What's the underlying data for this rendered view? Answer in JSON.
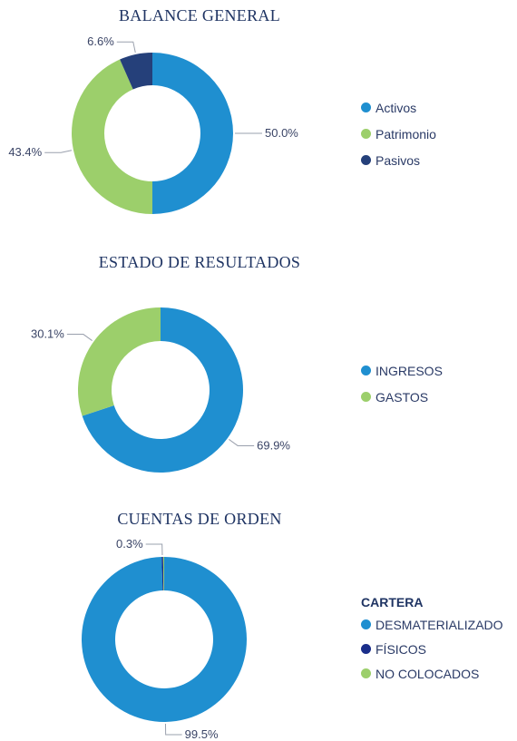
{
  "chart_data": [
    {
      "type": "pie",
      "title": "BALANCE GENERAL",
      "categories": [
        "Activos",
        "Patrimonio",
        "Pasivos"
      ],
      "values": [
        50.0,
        43.4,
        6.6
      ],
      "labels": [
        "50.0%",
        "43.4%",
        "6.6%"
      ],
      "colors": [
        "#1f8fd0",
        "#9ccf6b",
        "#25407a"
      ],
      "legend_position": "right",
      "donut": true
    },
    {
      "type": "pie",
      "title": "ESTADO DE RESULTADOS",
      "categories": [
        "INGRESOS",
        "GASTOS"
      ],
      "values": [
        69.9,
        30.1
      ],
      "labels": [
        "69.9%",
        "30.1%"
      ],
      "colors": [
        "#1f8fd0",
        "#9ccf6b"
      ],
      "legend_position": "right",
      "donut": true
    },
    {
      "type": "pie",
      "title": "CUENTAS DE ORDEN",
      "legend_title": "CARTERA",
      "categories": [
        "DESMATERIALIZADO",
        "FÍSICOS",
        "NO COLOCADOS"
      ],
      "values": [
        99.5,
        0.3,
        0.2
      ],
      "labels": [
        "99.5%",
        "0.3%",
        ""
      ],
      "colors": [
        "#1f8fd0",
        "#1a2e8a",
        "#9ccf6b"
      ],
      "legend_position": "right",
      "donut": true
    }
  ]
}
